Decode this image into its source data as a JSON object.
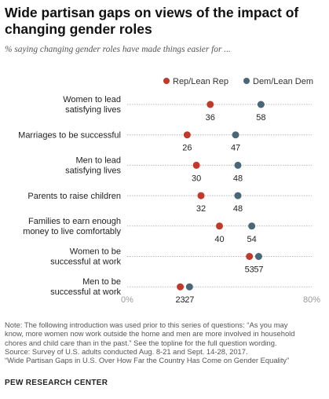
{
  "title": "Wide partisan gaps on views of the impact of changing gender roles",
  "subtitle": "% saying changing gender roles have made things easier for ...",
  "colors": {
    "rep": "#c0392b",
    "dem": "#4a6778",
    "grid": "#b9b9b9",
    "axis_text": "#999999"
  },
  "chart_data": {
    "type": "dot",
    "xlim": [
      0,
      80
    ],
    "x_ticks": [
      "0%",
      "80%"
    ],
    "legend_placement": "top-right",
    "series": [
      {
        "name": "Rep/Lean Rep",
        "color": "#c0392b"
      },
      {
        "name": "Dem/Lean Dem",
        "color": "#4a6778"
      }
    ],
    "categories": [
      {
        "lines": [
          "Women to lead",
          "satisfying lives"
        ],
        "rep": 36,
        "dem": 58,
        "rep_label": "36",
        "dem_label": "58"
      },
      {
        "lines": [
          "Marriages to be successful"
        ],
        "rep": 26,
        "dem": 47,
        "rep_label": "26",
        "dem_label": "47"
      },
      {
        "lines": [
          "Men to lead",
          "satisfying lives"
        ],
        "rep": 30,
        "dem": 48,
        "rep_label": "30",
        "dem_label": "48"
      },
      {
        "lines": [
          "Parents to raise children"
        ],
        "rep": 32,
        "dem": 48,
        "rep_label": "32",
        "dem_label": "48"
      },
      {
        "lines": [
          "Families to earn enough",
          "money to live comfortably"
        ],
        "rep": 40,
        "dem": 54,
        "rep_label": "40",
        "dem_label": "54"
      },
      {
        "lines": [
          "Women to be",
          "successful at work"
        ],
        "rep": 53,
        "dem": 57,
        "rep_label": "53",
        "dem_label": "57"
      },
      {
        "lines": [
          "Men to be",
          "successful at work"
        ],
        "rep": 23,
        "dem": 27,
        "rep_label": "23",
        "dem_label": "27"
      }
    ]
  },
  "note": {
    "lines": [
      "Note: The following introduction was used prior to this series of questions: “As you may",
      "know, more women now work outside the home and men are more involved in household",
      "chores and child care than in the past.” See the topline for the full question wording.",
      "Source: Survey of U.S. adults conducted Aug. 8-21 and Sept. 14-28, 2017.",
      "“Wide Partisan Gaps in U.S. Over How Far the Country Has Come on Gender Equality”"
    ]
  },
  "source_org": "PEW RESEARCH CENTER"
}
